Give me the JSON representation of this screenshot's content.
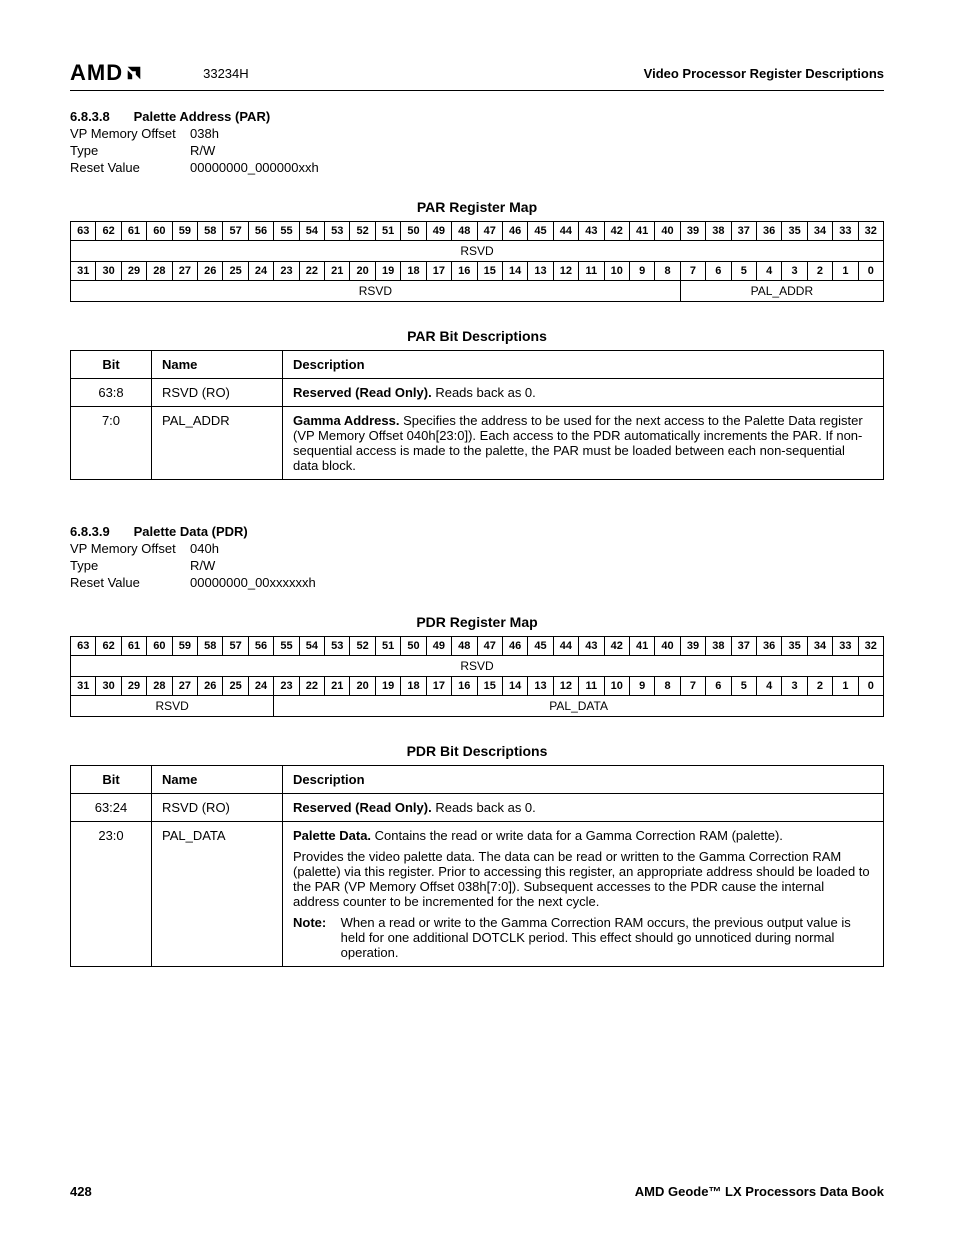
{
  "header": {
    "logo_text": "AMD",
    "doc_id": "33234H",
    "right": "Video Processor Register Descriptions"
  },
  "par": {
    "secnum": "6.8.3.8",
    "title": "Palette Address (PAR)",
    "offset_label": "VP Memory Offset",
    "offset": "038h",
    "type_label": "Type",
    "type": "R/W",
    "reset_label": "Reset Value",
    "reset": "00000000_000000xxh",
    "regmap_title": "PAR Register Map",
    "hi_bits": [
      "63",
      "62",
      "61",
      "60",
      "59",
      "58",
      "57",
      "56",
      "55",
      "54",
      "53",
      "52",
      "51",
      "50",
      "49",
      "48",
      "47",
      "46",
      "45",
      "44",
      "43",
      "42",
      "41",
      "40",
      "39",
      "38",
      "37",
      "36",
      "35",
      "34",
      "33",
      "32"
    ],
    "lo_bits": [
      "31",
      "30",
      "29",
      "28",
      "27",
      "26",
      "25",
      "24",
      "23",
      "22",
      "21",
      "20",
      "19",
      "18",
      "17",
      "16",
      "15",
      "14",
      "13",
      "12",
      "11",
      "10",
      "9",
      "8",
      "7",
      "6",
      "5",
      "4",
      "3",
      "2",
      "1",
      "0"
    ],
    "hi_field": "RSVD",
    "lo_fields": [
      {
        "span": 24,
        "label": "RSVD"
      },
      {
        "span": 8,
        "label": "PAL_ADDR"
      }
    ],
    "bitdesc_title": "PAR Bit Descriptions",
    "cols": [
      "Bit",
      "Name",
      "Description"
    ],
    "rows": [
      {
        "bit": "63:8",
        "name": "RSVD (RO)",
        "desc_bold": "Reserved (Read Only).",
        "desc_rest": " Reads back as 0."
      },
      {
        "bit": "7:0",
        "name": "PAL_ADDR",
        "desc_bold": "Gamma Address.",
        "desc_rest": " Specifies the address to be used for the next access to the Palette Data register (VP Memory Offset 040h[23:0]). Each access to the PDR automatically increments the PAR. If non-sequential access is made to the palette, the PAR must be loaded between each non-sequential data block."
      }
    ]
  },
  "pdr": {
    "secnum": "6.8.3.9",
    "title": "Palette Data (PDR)",
    "offset_label": "VP Memory Offset",
    "offset": "040h",
    "type_label": "Type",
    "type": "R/W",
    "reset_label": "Reset Value",
    "reset": "00000000_00xxxxxxh",
    "regmap_title": "PDR Register Map",
    "hi_bits": [
      "63",
      "62",
      "61",
      "60",
      "59",
      "58",
      "57",
      "56",
      "55",
      "54",
      "53",
      "52",
      "51",
      "50",
      "49",
      "48",
      "47",
      "46",
      "45",
      "44",
      "43",
      "42",
      "41",
      "40",
      "39",
      "38",
      "37",
      "36",
      "35",
      "34",
      "33",
      "32"
    ],
    "lo_bits": [
      "31",
      "30",
      "29",
      "28",
      "27",
      "26",
      "25",
      "24",
      "23",
      "22",
      "21",
      "20",
      "19",
      "18",
      "17",
      "16",
      "15",
      "14",
      "13",
      "12",
      "11",
      "10",
      "9",
      "8",
      "7",
      "6",
      "5",
      "4",
      "3",
      "2",
      "1",
      "0"
    ],
    "hi_field": "RSVD",
    "lo_fields": [
      {
        "span": 8,
        "label": "RSVD"
      },
      {
        "span": 24,
        "label": "PAL_DATA"
      }
    ],
    "bitdesc_title": "PDR Bit Descriptions",
    "cols": [
      "Bit",
      "Name",
      "Description"
    ],
    "rows": [
      {
        "bit": "63:24",
        "name": "RSVD (RO)",
        "desc_bold": "Reserved (Read Only).",
        "desc_rest": " Reads back as 0."
      },
      {
        "bit": "23:0",
        "name": "PAL_DATA",
        "desc_bold": "Palette Data.",
        "desc_rest": " Contains the read or write data for a Gamma Correction RAM (palette).",
        "para2": "Provides the video palette data. The data can be read or written to the Gamma Correction RAM (palette) via this register. Prior to accessing this register, an appropriate address should be loaded to the PAR (VP Memory Offset 038h[7:0]). Subsequent accesses to the PDR cause the internal address counter to be incremented for the next cycle.",
        "note_label": "Note:",
        "note": "When a read or write to the Gamma Correction RAM occurs, the previous output value is held for one additional DOTCLK period. This effect should go unnoticed during normal operation."
      }
    ]
  },
  "footer": {
    "page": "428",
    "book": "AMD Geode™ LX Processors Data Book"
  }
}
